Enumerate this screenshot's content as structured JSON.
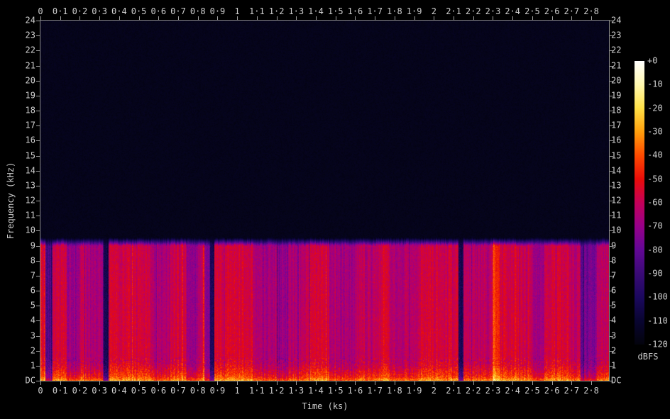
{
  "app": {
    "background": "#000000",
    "text_color": "#cfcfcf",
    "axis_color": "#8a8a8a"
  },
  "chart_data": {
    "type": "heatmap",
    "subtype": "audio-spectrogram",
    "title": "",
    "xlabel": "Time (ks)",
    "ylabel": "Frequency (kHz)",
    "x_range_ks": [
      0,
      2.89
    ],
    "y_range_khz": [
      0,
      24
    ],
    "grid": false,
    "x_ticks": [
      "0",
      "0·1",
      "0·2",
      "0·3",
      "0·4",
      "0·5",
      "0·6",
      "0·7",
      "0·8",
      "0·9",
      "1",
      "1·1",
      "1·2",
      "1·3",
      "1·4",
      "1·5",
      "1·6",
      "1·7",
      "1·8",
      "1·9",
      "2",
      "2·1",
      "2·2",
      "2·3",
      "2·4",
      "2·5",
      "2·6",
      "2·7",
      "2·8"
    ],
    "x_tick_values": [
      0,
      0.1,
      0.2,
      0.3,
      0.4,
      0.5,
      0.6,
      0.7,
      0.8,
      0.9,
      1,
      1.1,
      1.2,
      1.3,
      1.4,
      1.5,
      1.6,
      1.7,
      1.8,
      1.9,
      2,
      2.1,
      2.2,
      2.3,
      2.4,
      2.5,
      2.6,
      2.7,
      2.8
    ],
    "y_ticks": [
      "24",
      "23",
      "22",
      "21",
      "20",
      "19",
      "18",
      "17",
      "16",
      "15",
      "14",
      "13",
      "12",
      "11",
      "10",
      "9",
      "8",
      "7",
      "6",
      "5",
      "4",
      "3",
      "2",
      "1",
      "DC"
    ],
    "y_tick_values": [
      24,
      23,
      22,
      21,
      20,
      19,
      18,
      17,
      16,
      15,
      14,
      13,
      12,
      11,
      10,
      9,
      8,
      7,
      6,
      5,
      4,
      3,
      2,
      1,
      0
    ],
    "colorbar": {
      "label": "dBFS",
      "ticks": [
        "+0",
        "-10",
        "-20",
        "-30",
        "-40",
        "-50",
        "-60",
        "-70",
        "-80",
        "-90",
        "-100",
        "-110",
        "-120"
      ],
      "range_db": [
        0,
        -120
      ],
      "palette": [
        {
          "db": 0,
          "color": "#ffffff"
        },
        {
          "db": -10,
          "color": "#fff8b0"
        },
        {
          "db": -20,
          "color": "#ffe046"
        },
        {
          "db": -30,
          "color": "#ff9e0c"
        },
        {
          "db": -40,
          "color": "#ff4a00"
        },
        {
          "db": -50,
          "color": "#e90c09"
        },
        {
          "db": -60,
          "color": "#c40059"
        },
        {
          "db": -70,
          "color": "#97008a"
        },
        {
          "db": -80,
          "color": "#620795"
        },
        {
          "db": -90,
          "color": "#3a0a76"
        },
        {
          "db": -100,
          "color": "#1b085e"
        },
        {
          "db": -110,
          "color": "#090531"
        },
        {
          "db": -120,
          "color": "#03030c"
        }
      ]
    },
    "content": {
      "noise_cutoff_khz": 9.5,
      "cutoff_fade_khz": 0.5,
      "noise_floor_db": -116,
      "base_level_db": -56,
      "tilt_db_per_khz": -0.35,
      "low_freq_boost_db": 20,
      "low_freq_boost_below_khz": 1.4,
      "dc_boost_db": 7,
      "dc_boost_below_khz": 0.25,
      "speckle_db": 5,
      "speckle_low_db": 9,
      "seed": 77,
      "sections": [
        {
          "t0": 0.0,
          "t1": 0.025,
          "dl": 4
        },
        {
          "t0": 0.025,
          "t1": 0.06,
          "dl": -28
        },
        {
          "t0": 0.06,
          "t1": 0.135,
          "dl": 1
        },
        {
          "t0": 0.135,
          "t1": 0.2,
          "dl": -11
        },
        {
          "t0": 0.2,
          "t1": 0.23,
          "dl": -3
        },
        {
          "t0": 0.23,
          "t1": 0.322,
          "dl": -9
        },
        {
          "t0": 0.322,
          "t1": 0.345,
          "dl": -45
        },
        {
          "t0": 0.345,
          "t1": 0.56,
          "dl": 2
        },
        {
          "t0": 0.56,
          "t1": 0.66,
          "dl": -7
        },
        {
          "t0": 0.66,
          "t1": 0.74,
          "dl": 1
        },
        {
          "t0": 0.74,
          "t1": 0.8,
          "dl": -13
        },
        {
          "t0": 0.8,
          "t1": 0.826,
          "dl": -4
        },
        {
          "t0": 0.826,
          "t1": 0.834,
          "dl": 8
        },
        {
          "t0": 0.834,
          "t1": 0.862,
          "dl": -16
        },
        {
          "t0": 0.862,
          "t1": 0.885,
          "dl": -45
        },
        {
          "t0": 0.885,
          "t1": 1.08,
          "dl": 2
        },
        {
          "t0": 1.08,
          "t1": 1.2,
          "dl": -8
        },
        {
          "t0": 1.2,
          "t1": 1.26,
          "dl": -12
        },
        {
          "t0": 1.26,
          "t1": 1.35,
          "dl": -6
        },
        {
          "t0": 1.35,
          "t1": 1.47,
          "dl": 1
        },
        {
          "t0": 1.47,
          "t1": 1.6,
          "dl": -8
        },
        {
          "t0": 1.6,
          "t1": 1.73,
          "dl": -3
        },
        {
          "t0": 1.73,
          "t1": 1.775,
          "dl": 4
        },
        {
          "t0": 1.775,
          "t1": 1.92,
          "dl": -5
        },
        {
          "t0": 1.92,
          "t1": 2.125,
          "dl": 1
        },
        {
          "t0": 2.125,
          "t1": 2.15,
          "dl": -45
        },
        {
          "t0": 2.15,
          "t1": 2.3,
          "dl": -3
        },
        {
          "t0": 2.3,
          "t1": 2.335,
          "dl": 12
        },
        {
          "t0": 2.335,
          "t1": 2.495,
          "dl": 1
        },
        {
          "t0": 2.495,
          "t1": 2.56,
          "dl": -9
        },
        {
          "t0": 2.56,
          "t1": 2.63,
          "dl": 2
        },
        {
          "t0": 2.63,
          "t1": 2.645,
          "dl": 6
        },
        {
          "t0": 2.645,
          "t1": 2.7,
          "dl": 1
        },
        {
          "t0": 2.7,
          "t1": 2.745,
          "dl": -5
        },
        {
          "t0": 2.745,
          "t1": 2.762,
          "dl": -26
        },
        {
          "t0": 2.762,
          "t1": 2.825,
          "dl": -17
        },
        {
          "t0": 2.825,
          "t1": 2.89,
          "dl": -4
        }
      ]
    }
  }
}
